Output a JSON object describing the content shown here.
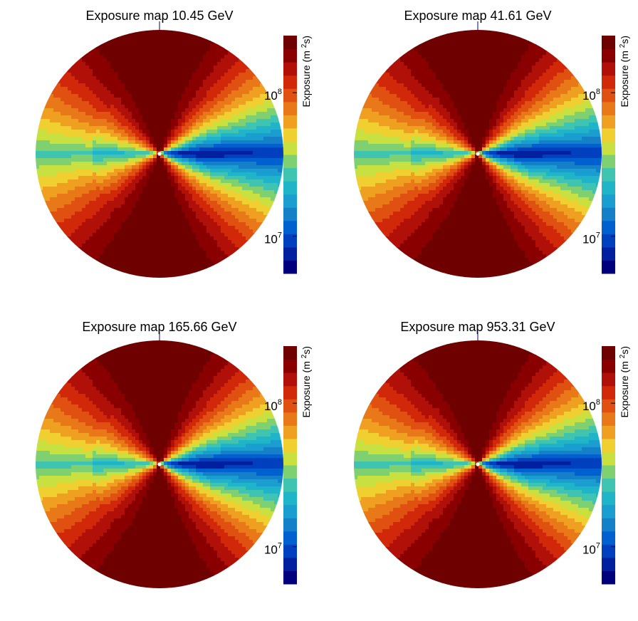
{
  "chart_data": [
    {
      "type": "heatmap",
      "projection": "circular sky map (full-sky disk)",
      "title": "Exposure map 10.45 GeV",
      "colorbar_label": "Exposure (m",
      "colorbar_label_sup": "2",
      "colorbar_label_end": "s)",
      "colorbar_scale": "log",
      "colorbar_range": [
        5500000.0,
        250000000.0
      ],
      "colorbar_ticks": [
        {
          "value": 10000000,
          "base": "10",
          "exp": "7"
        },
        {
          "value": 100000000,
          "base": "10",
          "exp": "8"
        }
      ],
      "colormap": "jet",
      "grid": false
    },
    {
      "type": "heatmap",
      "projection": "circular sky map (full-sky disk)",
      "title": "Exposure map 41.61 GeV",
      "colorbar_label": "Exposure (m",
      "colorbar_label_sup": "2",
      "colorbar_label_end": "s)",
      "colorbar_scale": "log",
      "colorbar_range": [
        5500000.0,
        250000000.0
      ],
      "colorbar_ticks": [
        {
          "value": 10000000,
          "base": "10",
          "exp": "7"
        },
        {
          "value": 100000000,
          "base": "10",
          "exp": "8"
        }
      ],
      "colormap": "jet",
      "grid": false
    },
    {
      "type": "heatmap",
      "projection": "circular sky map (full-sky disk)",
      "title": "Exposure map 165.66 GeV",
      "colorbar_label": "Exposure (m",
      "colorbar_label_sup": "2",
      "colorbar_label_end": "s)",
      "colorbar_scale": "log",
      "colorbar_range": [
        5500000.0,
        250000000.0
      ],
      "colorbar_ticks": [
        {
          "value": 10000000,
          "base": "10",
          "exp": "7"
        },
        {
          "value": 100000000,
          "base": "10",
          "exp": "8"
        }
      ],
      "colormap": "jet",
      "grid": false
    },
    {
      "type": "heatmap",
      "projection": "circular sky map (full-sky disk)",
      "title": "Exposure map 953.31 GeV",
      "colorbar_label": "Exposure (m",
      "colorbar_label_sup": "2",
      "colorbar_label_end": "s)",
      "colorbar_scale": "log",
      "colorbar_range": [
        5500000.0,
        250000000.0
      ],
      "colorbar_ticks": [
        {
          "value": 10000000,
          "base": "10",
          "exp": "7"
        },
        {
          "value": 100000000,
          "base": "10",
          "exp": "8"
        }
      ],
      "colormap": "jet",
      "grid": false
    }
  ],
  "palette": [
    "#00007f",
    "#00209f",
    "#0040bf",
    "#0060d0",
    "#1480c8",
    "#1a9ed0",
    "#20b4c8",
    "#3ec4b0",
    "#7ed070",
    "#c8e040",
    "#f0d030",
    "#f0a020",
    "#e87818",
    "#e05010",
    "#d02808",
    "#b01008",
    "#8a0000",
    "#6e0000"
  ]
}
